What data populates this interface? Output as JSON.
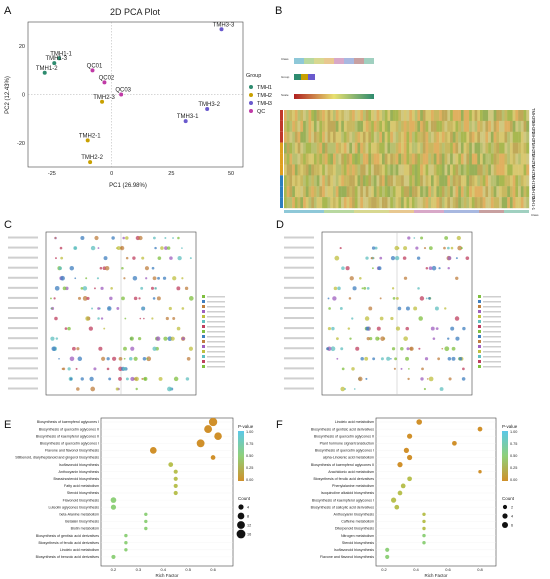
{
  "panels": {
    "A": {
      "letter": "A",
      "title": "2D PCA Plot",
      "xlabel": "PC1 (26.98%)",
      "ylabel": "PC2 (12.43%)",
      "x_ticks": [
        "-25",
        "0",
        "25",
        "50"
      ],
      "y_ticks": [
        "20",
        "0",
        "-20"
      ],
      "legend_title": "Group",
      "groups": [
        {
          "name": "TMH1",
          "color": "#2e8b6f"
        },
        {
          "name": "TMH2",
          "color": "#c8a000"
        },
        {
          "name": "TMH3",
          "color": "#6a5acd"
        },
        {
          "name": "QC",
          "color": "#c03aa6"
        }
      ]
    },
    "B": {
      "letter": "B",
      "row_labels": [
        "TMH3-3",
        "TMH3-2",
        "TMH3-1",
        "TMH2-2",
        "TMH2-1",
        "TMH2-3",
        "TMH1-3",
        "TMH1-2",
        "TMH1-1"
      ],
      "class_label": "Class",
      "group_label": "Group",
      "scale_label": "Scale",
      "bottom_label": "Class"
    },
    "C": {
      "letter": "C"
    },
    "D": {
      "letter": "D"
    },
    "E": {
      "letter": "E",
      "xlabel": "Rich Factor",
      "x_ticks": [
        "0.2",
        "0.3",
        "0.4",
        "0.5",
        "0.6"
      ],
      "pvalue_title": "P-value",
      "pvalue_ticks": [
        "1.00",
        "0.75",
        "0.50",
        "0.25",
        "0.00"
      ],
      "count_title": "Count",
      "count_ticks": [
        "4",
        "8",
        "12",
        "16"
      ],
      "pathways": [
        "Biosynthesis of kaempferol aglycones I",
        "Biosynthesis of quercetin aglycones II",
        "Biosynthesis of kaempferol aglycones II",
        "Biosynthesis of quercetin aglycones I",
        "Flavone and flavonol biosynthesis",
        "Stilbenoid, diarylheptanoid and gingerol biosynthesis",
        "Isoflavonoid biosynthesis",
        "Anthocyanin biosynthesis",
        "Brassinosteroid biosynthesis",
        "Fatty acid metabolism",
        "Steroid biosynthesis",
        "Flavonoid biosynthesis",
        "Luteolin aglycones biosynthesis",
        "beta-Alanine metabolism",
        "Betalain biosynthesis",
        "Biotin metabolism",
        "Biosynthesis of gentisic acid derivatives",
        "Biosynthesis of ferulic acid derivatives",
        "Linoleic acid metabolism",
        "Biosynthesis of benzoic acid derivatives"
      ]
    },
    "F": {
      "letter": "F",
      "xlabel": "Rich Factor",
      "x_ticks": [
        "0.2",
        "0.4",
        "0.6",
        "0.8"
      ],
      "pvalue_title": "P-value",
      "pvalue_ticks": [
        "1.00",
        "0.75",
        "0.50",
        "0.25",
        "0.00"
      ],
      "count_title": "Count",
      "count_ticks": [
        "2",
        "4",
        "6"
      ],
      "pathways": [
        "Linoleic acid metabolism",
        "Biosynthesis of gentisic acid derivatives",
        "Biosynthesis of quercetin aglycones II",
        "Plant hormone signal transduction",
        "Biosynthesis of quercetin aglycones I",
        "alpha-Linolenic acid metabolism",
        "Biosynthesis of kaempferol aglycones II",
        "Arachidonic acid metabolism",
        "Biosynthesis of ferulic acid derivatives",
        "Phenylalanine metabolism",
        "Isoquinoline alkaloid biosynthesis",
        "Biosynthesis of kaempferol aglycones I",
        "Biosynthesis of salicylic acid derivatives",
        "Anthocyanin biosynthesis",
        "Caffeine metabolism",
        "Diterpenoid biosynthesis",
        "Nitrogen metabolism",
        "Steroid biosynthesis",
        "Isoflavonoid biosynthesis",
        "Flavone and flavonol biosynthesis"
      ]
    }
  },
  "chart_data": [
    {
      "type": "scatter",
      "title": "2D PCA Plot",
      "xlabel": "PC1 (26.98%)",
      "ylabel": "PC2 (12.43%)",
      "xlim": [
        -35,
        55
      ],
      "ylim": [
        -30,
        30
      ],
      "series": [
        {
          "name": "TMH1",
          "points": [
            {
              "label": "TMH1-1",
              "x": -22,
              "y": 15
            },
            {
              "label": "TMH1-3",
              "x": -24,
              "y": 13
            },
            {
              "label": "TMH1-2",
              "x": -28,
              "y": 9
            }
          ]
        },
        {
          "name": "TMH2",
          "points": [
            {
              "label": "TMH2-3",
              "x": -4,
              "y": -3
            },
            {
              "label": "TMH2-1",
              "x": -10,
              "y": -19
            },
            {
              "label": "TMH2-2",
              "x": -9,
              "y": -28
            }
          ]
        },
        {
          "name": "TMH3",
          "points": [
            {
              "label": "TMH3-3",
              "x": 46,
              "y": 27
            },
            {
              "label": "TMH3-2",
              "x": 40,
              "y": -6
            },
            {
              "label": "TMH3-1",
              "x": 31,
              "y": -11
            }
          ]
        },
        {
          "name": "QC",
          "points": [
            {
              "label": "QC01",
              "x": -8,
              "y": 10
            },
            {
              "label": "QC02",
              "x": -3,
              "y": 5
            },
            {
              "label": "QC03",
              "x": 4,
              "y": 0
            }
          ]
        }
      ]
    },
    {
      "type": "scatter",
      "panel": "E",
      "xlabel": "Rich Factor",
      "xlim": [
        0.15,
        0.68
      ],
      "points": [
        {
          "pathway": "Biosynthesis of kaempferol aglycones I",
          "x": 0.6,
          "count": 14,
          "p": 0.0
        },
        {
          "pathway": "Biosynthesis of quercetin aglycones II",
          "x": 0.58,
          "count": 12,
          "p": 0.02
        },
        {
          "pathway": "Biosynthesis of kaempferol aglycones II",
          "x": 0.62,
          "count": 11,
          "p": 0.03
        },
        {
          "pathway": "Biosynthesis of quercetin aglycones I",
          "x": 0.55,
          "count": 12,
          "p": 0.05
        },
        {
          "pathway": "Flavone and flavonol biosynthesis",
          "x": 0.36,
          "count": 8,
          "p": 0.18
        },
        {
          "pathway": "Stilbenoid, diarylheptanoid and gingerol biosynthesis",
          "x": 0.6,
          "count": 3,
          "p": 0.3
        },
        {
          "pathway": "Isoflavonoid biosynthesis",
          "x": 0.43,
          "count": 3,
          "p": 0.42
        },
        {
          "pathway": "Anthocyanin biosynthesis",
          "x": 0.45,
          "count": 2,
          "p": 0.5
        },
        {
          "pathway": "Brassinosteroid biosynthesis",
          "x": 0.45,
          "count": 2,
          "p": 0.5
        },
        {
          "pathway": "Fatty acid metabolism",
          "x": 0.45,
          "count": 2,
          "p": 0.55
        },
        {
          "pathway": "Steroid biosynthesis",
          "x": 0.45,
          "count": 2,
          "p": 0.6
        },
        {
          "pathway": "Flavonoid biosynthesis",
          "x": 0.2,
          "count": 5,
          "p": 0.7
        },
        {
          "pathway": "Luteolin aglycones biosynthesis",
          "x": 0.2,
          "count": 4,
          "p": 0.72
        },
        {
          "pathway": "beta-Alanine metabolism",
          "x": 0.33,
          "count": 1,
          "p": 0.8
        },
        {
          "pathway": "Betalain biosynthesis",
          "x": 0.33,
          "count": 1,
          "p": 0.82
        },
        {
          "pathway": "Biotin metabolism",
          "x": 0.33,
          "count": 1,
          "p": 0.84
        },
        {
          "pathway": "Biosynthesis of gentisic acid derivatives",
          "x": 0.25,
          "count": 1,
          "p": 0.86
        },
        {
          "pathway": "Biosynthesis of ferulic acid derivatives",
          "x": 0.25,
          "count": 1,
          "p": 0.88
        },
        {
          "pathway": "Linoleic acid metabolism",
          "x": 0.25,
          "count": 1,
          "p": 0.9
        },
        {
          "pathway": "Biosynthesis of benzoic acid derivatives",
          "x": 0.2,
          "count": 2,
          "p": 0.95
        }
      ]
    },
    {
      "type": "scatter",
      "panel": "F",
      "xlabel": "Rich Factor",
      "xlim": [
        0.15,
        0.9
      ],
      "points": [
        {
          "pathway": "Linoleic acid metabolism",
          "x": 0.42,
          "count": 5,
          "p": 0.02
        },
        {
          "pathway": "Biosynthesis of gentisic acid derivatives",
          "x": 0.8,
          "count": 3,
          "p": 0.08
        },
        {
          "pathway": "Biosynthesis of quercetin aglycones II",
          "x": 0.36,
          "count": 4,
          "p": 0.1
        },
        {
          "pathway": "Plant hormone signal transduction",
          "x": 0.64,
          "count": 3,
          "p": 0.15
        },
        {
          "pathway": "Biosynthesis of quercetin aglycones I",
          "x": 0.34,
          "count": 4,
          "p": 0.18
        },
        {
          "pathway": "alpha-Linolenic acid metabolism",
          "x": 0.36,
          "count": 4,
          "p": 0.2
        },
        {
          "pathway": "Biosynthesis of kaempferol aglycones II",
          "x": 0.3,
          "count": 4,
          "p": 0.25
        },
        {
          "pathway": "Arachidonic acid metabolism",
          "x": 0.8,
          "count": 1,
          "p": 0.3
        },
        {
          "pathway": "Biosynthesis of ferulic acid derivatives",
          "x": 0.36,
          "count": 3,
          "p": 0.35
        },
        {
          "pathway": "Phenylalanine metabolism",
          "x": 0.32,
          "count": 3,
          "p": 0.4
        },
        {
          "pathway": "Isoquinoline alkaloid biosynthesis",
          "x": 0.3,
          "count": 3,
          "p": 0.42
        },
        {
          "pathway": "Biosynthesis of kaempferol aglycones I",
          "x": 0.26,
          "count": 4,
          "p": 0.45
        },
        {
          "pathway": "Biosynthesis of salicylic acid derivatives",
          "x": 0.28,
          "count": 3,
          "p": 0.5
        },
        {
          "pathway": "Anthocyanin biosynthesis",
          "x": 0.45,
          "count": 1,
          "p": 0.55
        },
        {
          "pathway": "Caffeine metabolism",
          "x": 0.45,
          "count": 1,
          "p": 0.6
        },
        {
          "pathway": "Diterpenoid biosynthesis",
          "x": 0.45,
          "count": 1,
          "p": 0.65
        },
        {
          "pathway": "Nitrogen metabolism",
          "x": 0.45,
          "count": 1,
          "p": 0.7
        },
        {
          "pathway": "Steroid biosynthesis",
          "x": 0.45,
          "count": 1,
          "p": 0.72
        },
        {
          "pathway": "Isoflavonoid biosynthesis",
          "x": 0.22,
          "count": 2,
          "p": 0.85
        },
        {
          "pathway": "Flavone and flavonol biosynthesis",
          "x": 0.22,
          "count": 2,
          "p": 0.9
        }
      ]
    }
  ]
}
